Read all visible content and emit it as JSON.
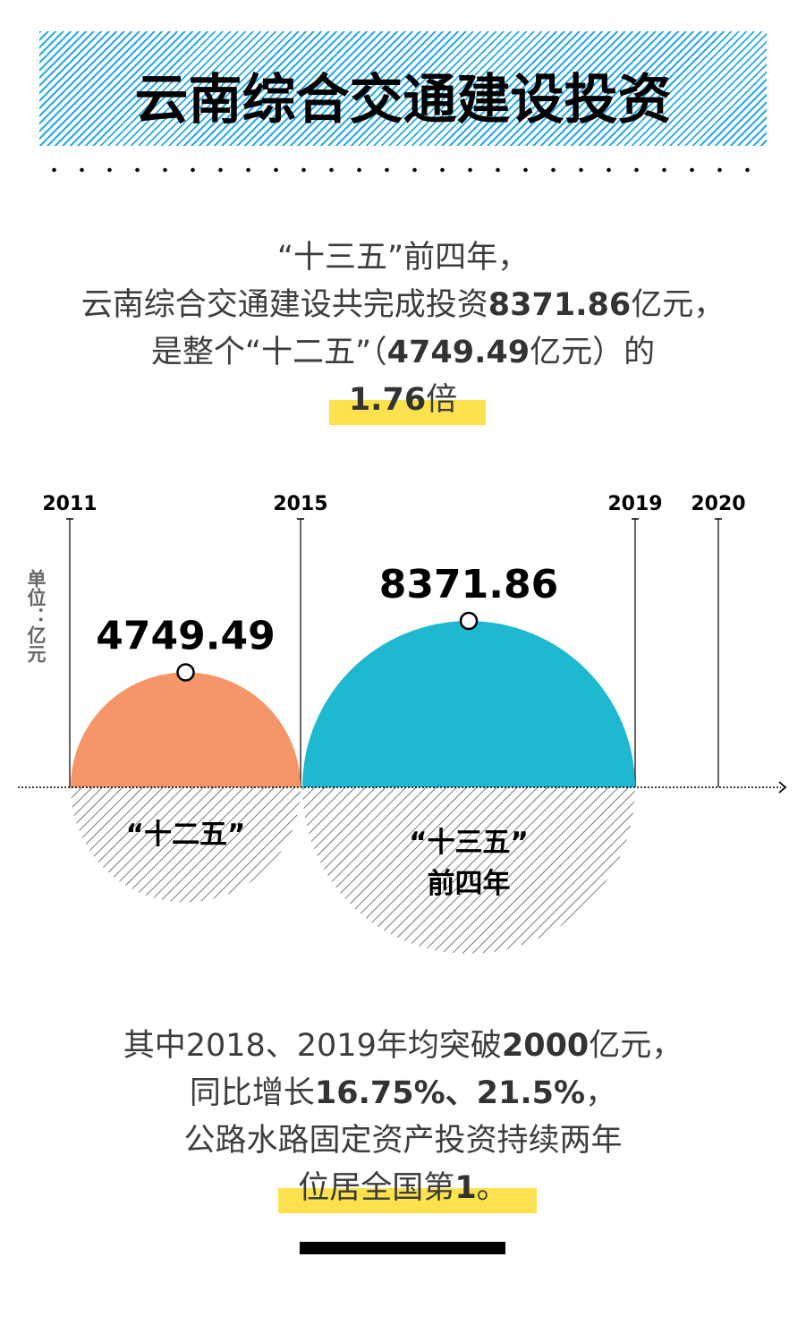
{
  "title": "云南综合交通建设投资",
  "intro": {
    "line1": "“十三五”前四年，",
    "line2_a": "云南综合交通建设共完成投资",
    "line2_b": "8371.86",
    "line2_c": "亿元，",
    "line3_a": "是整个“十二五”（",
    "line3_b": "4749.49",
    "line3_c": "亿元）的",
    "line4_a": "1.76",
    "line4_b": "倍"
  },
  "chart_data": {
    "type": "semicircle-comparison",
    "unit_label": "单位：亿元",
    "years": [
      "2011",
      "2015",
      "2019",
      "2020"
    ],
    "series": [
      {
        "label": "“十二五”",
        "period": [
          "2011",
          "2015"
        ],
        "value": 4749.49,
        "value_label": "4749.49",
        "color": "#f59668"
      },
      {
        "label": "“十三五”前四年",
        "label_line1": "“十三五”",
        "label_line2": "前四年",
        "period": [
          "2015",
          "2019"
        ],
        "value": 8371.86,
        "value_label": "8371.86",
        "color": "#1fb8d1"
      }
    ]
  },
  "outro": {
    "line1_a": "其中2018、2019年均突破",
    "line1_b": "2000",
    "line1_c": "亿元，",
    "line2_a": "同比增长",
    "line2_b": "16.75%、21.5%",
    "line2_c": "，",
    "line3": "公路水路固定资产投资持续两年",
    "line4_a": "位居全国第",
    "line4_b": "1",
    "line4_c": "。"
  },
  "colors": {
    "header_stripe": "#29a9e8",
    "highlight": "#fde24e",
    "orange": "#f59668",
    "teal": "#1fb8d1"
  }
}
